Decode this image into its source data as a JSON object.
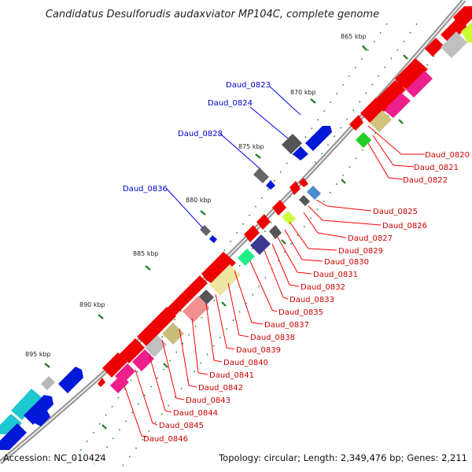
{
  "title": "Candidatus Desulforudis audaxviator MP104C, complete genome",
  "accession": "Accession: NC_010424",
  "summary": "Topology: circular; Length: 2,349,476 bp; Genes: 2,211",
  "colors": {
    "backbone": "#8c8c8c",
    "tick_major": "#2e8b2e",
    "tick_minor": "#2e8b2e",
    "label_blue": "#0000cc",
    "label_red": "#cc0000",
    "leader_blue": "#0000ff",
    "leader_red": "#ff0000"
  },
  "scale_labels": [
    {
      "kbp": 865,
      "text": "865 kbp"
    },
    {
      "kbp": 870,
      "text": "870 kbp"
    },
    {
      "kbp": 875,
      "text": "875 kbp"
    },
    {
      "kbp": 880,
      "text": "880 kbp"
    },
    {
      "kbp": 885,
      "text": "885 kbp"
    },
    {
      "kbp": 890,
      "text": "890 kbp"
    },
    {
      "kbp": 895,
      "text": "895 kbp"
    }
  ],
  "blue_labels": [
    "Daud_0823",
    "Daud_0824",
    "Daud_0828",
    "Daud_0836"
  ],
  "red_labels": [
    "Daud_0820",
    "Daud_0821",
    "Daud_0822",
    "Daud_0825",
    "Daud_0826",
    "Daud_0827",
    "Daud_0829",
    "Daud_0830",
    "Daud_0831",
    "Daud_0832",
    "Daud_0833",
    "Daud_0835",
    "Daud_0837",
    "Daud_0838",
    "Daud_0839",
    "Daud_0840",
    "Daud_0841",
    "Daud_0842",
    "Daud_0843",
    "Daud_0844",
    "Daud_0845",
    "Daud_0846"
  ]
}
